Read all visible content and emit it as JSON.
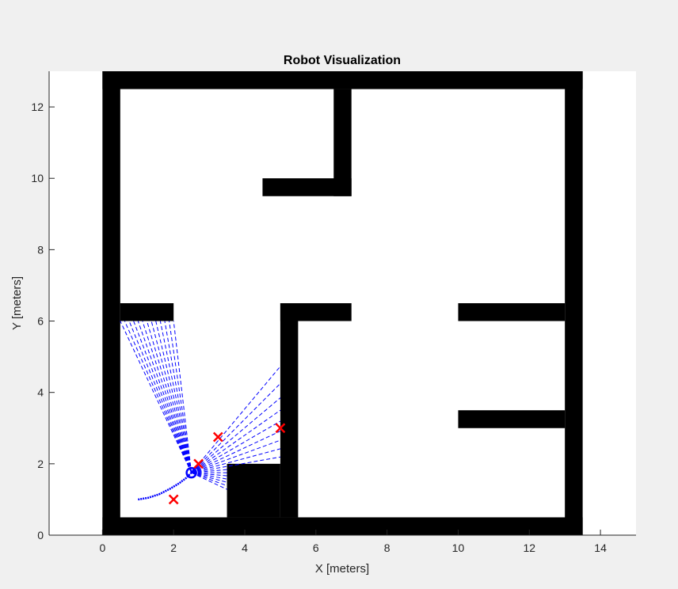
{
  "chart_data": {
    "type": "map",
    "title": "Robot Visualization",
    "xlabel": "X [meters]",
    "ylabel": "Y [meters]",
    "xlim": [
      -1.5,
      15
    ],
    "ylim": [
      0,
      13
    ],
    "xticks": [
      0,
      2,
      4,
      6,
      8,
      10,
      12,
      14
    ],
    "yticks": [
      0,
      2,
      4,
      6,
      8,
      10,
      12
    ],
    "grid": false,
    "occupancy_walls": [
      {
        "name": "outer-wall-left",
        "x0": 0,
        "y0": 0,
        "x1": 0.5,
        "y1": 13
      },
      {
        "name": "outer-wall-right",
        "x0": 13,
        "y0": 0,
        "x1": 13.5,
        "y1": 13
      },
      {
        "name": "outer-wall-top",
        "x0": 0,
        "y0": 12.5,
        "x1": 13.5,
        "y1": 13
      },
      {
        "name": "outer-wall-bottom",
        "x0": 0,
        "y0": 0,
        "x1": 13.5,
        "y1": 0.5
      },
      {
        "name": "top-divider-vertical",
        "x0": 6.5,
        "y0": 9.5,
        "x1": 7,
        "y1": 12.5
      },
      {
        "name": "top-divider-horizontal",
        "x0": 4.5,
        "y0": 9.5,
        "x1": 7,
        "y1": 10
      },
      {
        "name": "left-room-ledge",
        "x0": 0.5,
        "y0": 6,
        "x1": 2,
        "y1": 6.5
      },
      {
        "name": "center-wall-top",
        "x0": 5,
        "y0": 6,
        "x1": 7,
        "y1": 6.5
      },
      {
        "name": "center-wall-vertical",
        "x0": 5,
        "y0": 0.5,
        "x1": 5.5,
        "y1": 6.5
      },
      {
        "name": "right-ledge-upper",
        "x0": 10,
        "y0": 6,
        "x1": 13,
        "y1": 6.5
      },
      {
        "name": "right-ledge-lower",
        "x0": 10,
        "y0": 3,
        "x1": 13,
        "y1": 3.5
      },
      {
        "name": "bottom-block",
        "x0": 3.5,
        "y0": 0.5,
        "x1": 5,
        "y1": 2
      }
    ],
    "robot": {
      "x": 2.5,
      "y": 1.75,
      "heading_deg": 50
    },
    "trajectory": {
      "x": [
        1.0,
        1.3,
        1.6,
        1.9,
        2.15,
        2.35,
        2.5
      ],
      "y": [
        1.0,
        1.05,
        1.15,
        1.3,
        1.45,
        1.6,
        1.75
      ]
    },
    "landmarks": [
      {
        "x": 2.0,
        "y": 1.0
      },
      {
        "x": 2.7,
        "y": 2.0
      },
      {
        "x": 3.25,
        "y": 2.75
      },
      {
        "x": 5.0,
        "y": 3.0
      }
    ],
    "lidar_sector_left": {
      "from_deg": 94,
      "to_deg": 140,
      "rays": 13,
      "endpoints_y": 6.0,
      "endpoints_x_min": 0.5,
      "endpoints_x_max": 2.0
    },
    "lidar_sector_right": {
      "from_deg": -25,
      "to_deg": 50,
      "rays": 16,
      "max_range": 5.0
    },
    "colors": {
      "figure_bg": "#f0f0f0",
      "axes_bg": "#ffffff",
      "wall": "#000000",
      "lidar": "#0000ff",
      "trajectory": "#0000ff",
      "landmark": "#ff0000",
      "text": "#262626"
    }
  }
}
